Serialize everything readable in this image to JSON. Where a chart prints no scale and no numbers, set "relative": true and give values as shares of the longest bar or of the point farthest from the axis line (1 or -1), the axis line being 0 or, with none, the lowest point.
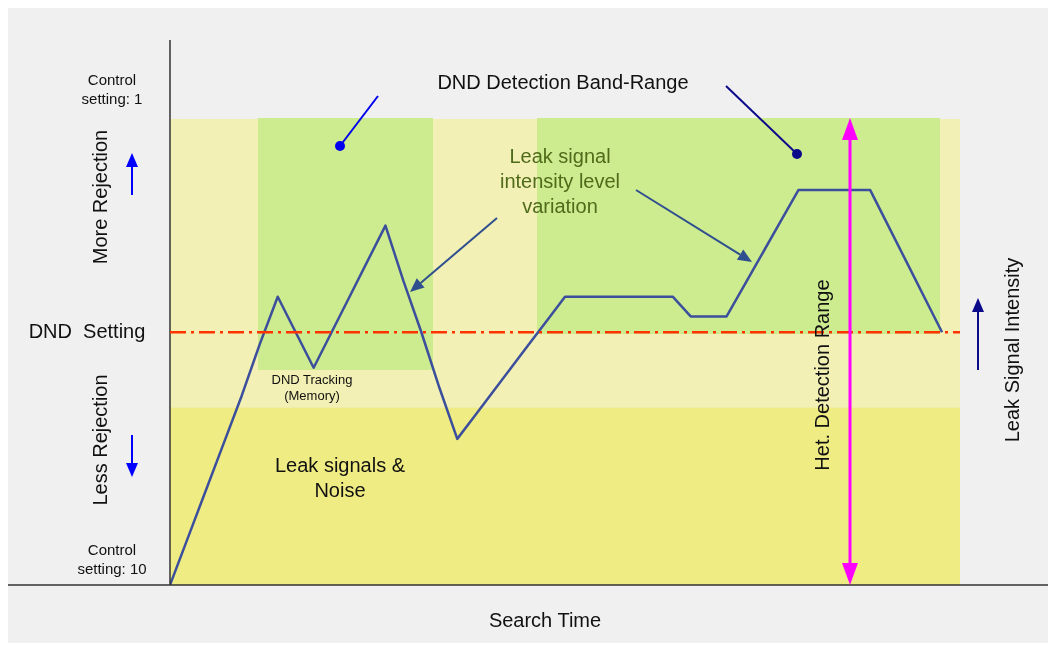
{
  "chart_data": {
    "type": "line",
    "relative": true,
    "xlabel": "Search Time",
    "y2label": "Leak Signal Intensity",
    "categories": [
      null,
      null,
      null,
      null,
      null,
      null,
      null,
      null,
      null,
      null,
      null,
      null,
      null,
      null,
      null,
      null,
      null,
      null,
      null,
      null,
      null,
      null,
      null,
      null,
      null,
      null,
      null,
      null,
      null,
      null,
      null,
      null,
      null,
      null,
      null,
      null,
      null,
      null,
      null,
      null,
      null,
      null,
      null,
      null,
      null
    ],
    "series": [
      {
        "color": "#3b4f9c",
        "values": [
          0,
          0.12,
          0.24,
          0.36,
          0.48,
          0.61,
          0.73,
          0.64,
          0.55,
          0.64,
          0.73,
          0.82,
          0.91,
          0.77,
          0.64,
          0.5,
          0.37,
          0.43,
          0.49,
          0.55,
          0.61,
          0.67,
          0.73,
          0.73,
          0.73,
          0.73,
          0.73,
          0.73,
          0.73,
          0.68,
          0.68,
          0.68,
          0.76,
          0.84,
          0.92,
          1,
          1,
          1,
          1,
          1,
          0.91,
          0.82,
          0.73,
          0.64,
          null
        ]
      }
    ],
    "marker": "none",
    "line_style": "solid",
    "legend": false,
    "bands": [
      {
        "axis": "y",
        "from": 0,
        "to": 0.45,
        "color": "#f0ec84"
      },
      {
        "axis": "y",
        "from": 0.45,
        "to": 1.18,
        "color": "#f2f0b4"
      }
    ],
    "ref_lines": [
      {
        "axis": "y",
        "value": 0.64,
        "label": "DND  Setting",
        "color": "#ff3300",
        "line_style": "dashed"
      }
    ],
    "annotations": [
      "DND Detection Band-Range",
      "Leak signal intensity level variation",
      "DND Tracking (Memory)",
      "Leak signals & Noise",
      "Control setting: 1",
      "More Rejection",
      "Less Rejection",
      "Control setting: 10",
      "Het. Detection Range"
    ]
  }
}
